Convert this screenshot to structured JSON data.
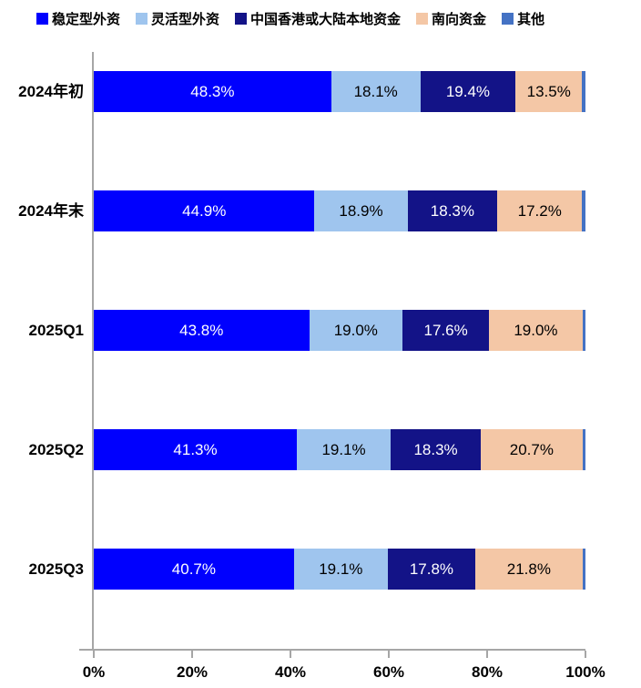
{
  "chart_data": {
    "type": "bar",
    "orientation": "horizontal",
    "stacked": true,
    "title": "",
    "xlabel": "",
    "ylabel": "",
    "xlim": [
      0,
      100
    ],
    "grid": false,
    "legend_position": "top",
    "axis_color": "#A6A6A6",
    "value_suffix": "%",
    "categories": [
      "2024年初",
      "2024年末",
      "2025Q1",
      "2025Q2",
      "2025Q3"
    ],
    "x_ticks": [
      {
        "value": 0,
        "label": "0%"
      },
      {
        "value": 20,
        "label": "20%"
      },
      {
        "value": 40,
        "label": "40%"
      },
      {
        "value": 60,
        "label": "60%"
      },
      {
        "value": 80,
        "label": "80%"
      },
      {
        "value": 100,
        "label": "100%"
      }
    ],
    "series": [
      {
        "name": "稳定型外资",
        "color": "#0000FE",
        "label_color": "#FFFFFF",
        "show_labels": true,
        "values": [
          48.3,
          44.9,
          43.8,
          41.3,
          40.7
        ]
      },
      {
        "name": "灵活型外资",
        "color": "#9FC5EE",
        "label_color": "#000000",
        "show_labels": true,
        "values": [
          18.1,
          18.9,
          19.0,
          19.1,
          19.1
        ]
      },
      {
        "name": "中国香港或大陆本地资金",
        "color": "#131387",
        "label_color": "#FFFFFF",
        "show_labels": true,
        "values": [
          19.4,
          18.3,
          17.6,
          18.3,
          17.8
        ]
      },
      {
        "name": "南向资金",
        "color": "#F4C7A6",
        "label_color": "#000000",
        "show_labels": true,
        "values": [
          13.5,
          17.2,
          19.0,
          20.7,
          21.8
        ]
      },
      {
        "name": "其他",
        "color": "#4472C4",
        "label_color": "#000000",
        "show_labels": false,
        "values": [
          0.7,
          0.7,
          0.6,
          0.6,
          0.6
        ]
      }
    ]
  }
}
